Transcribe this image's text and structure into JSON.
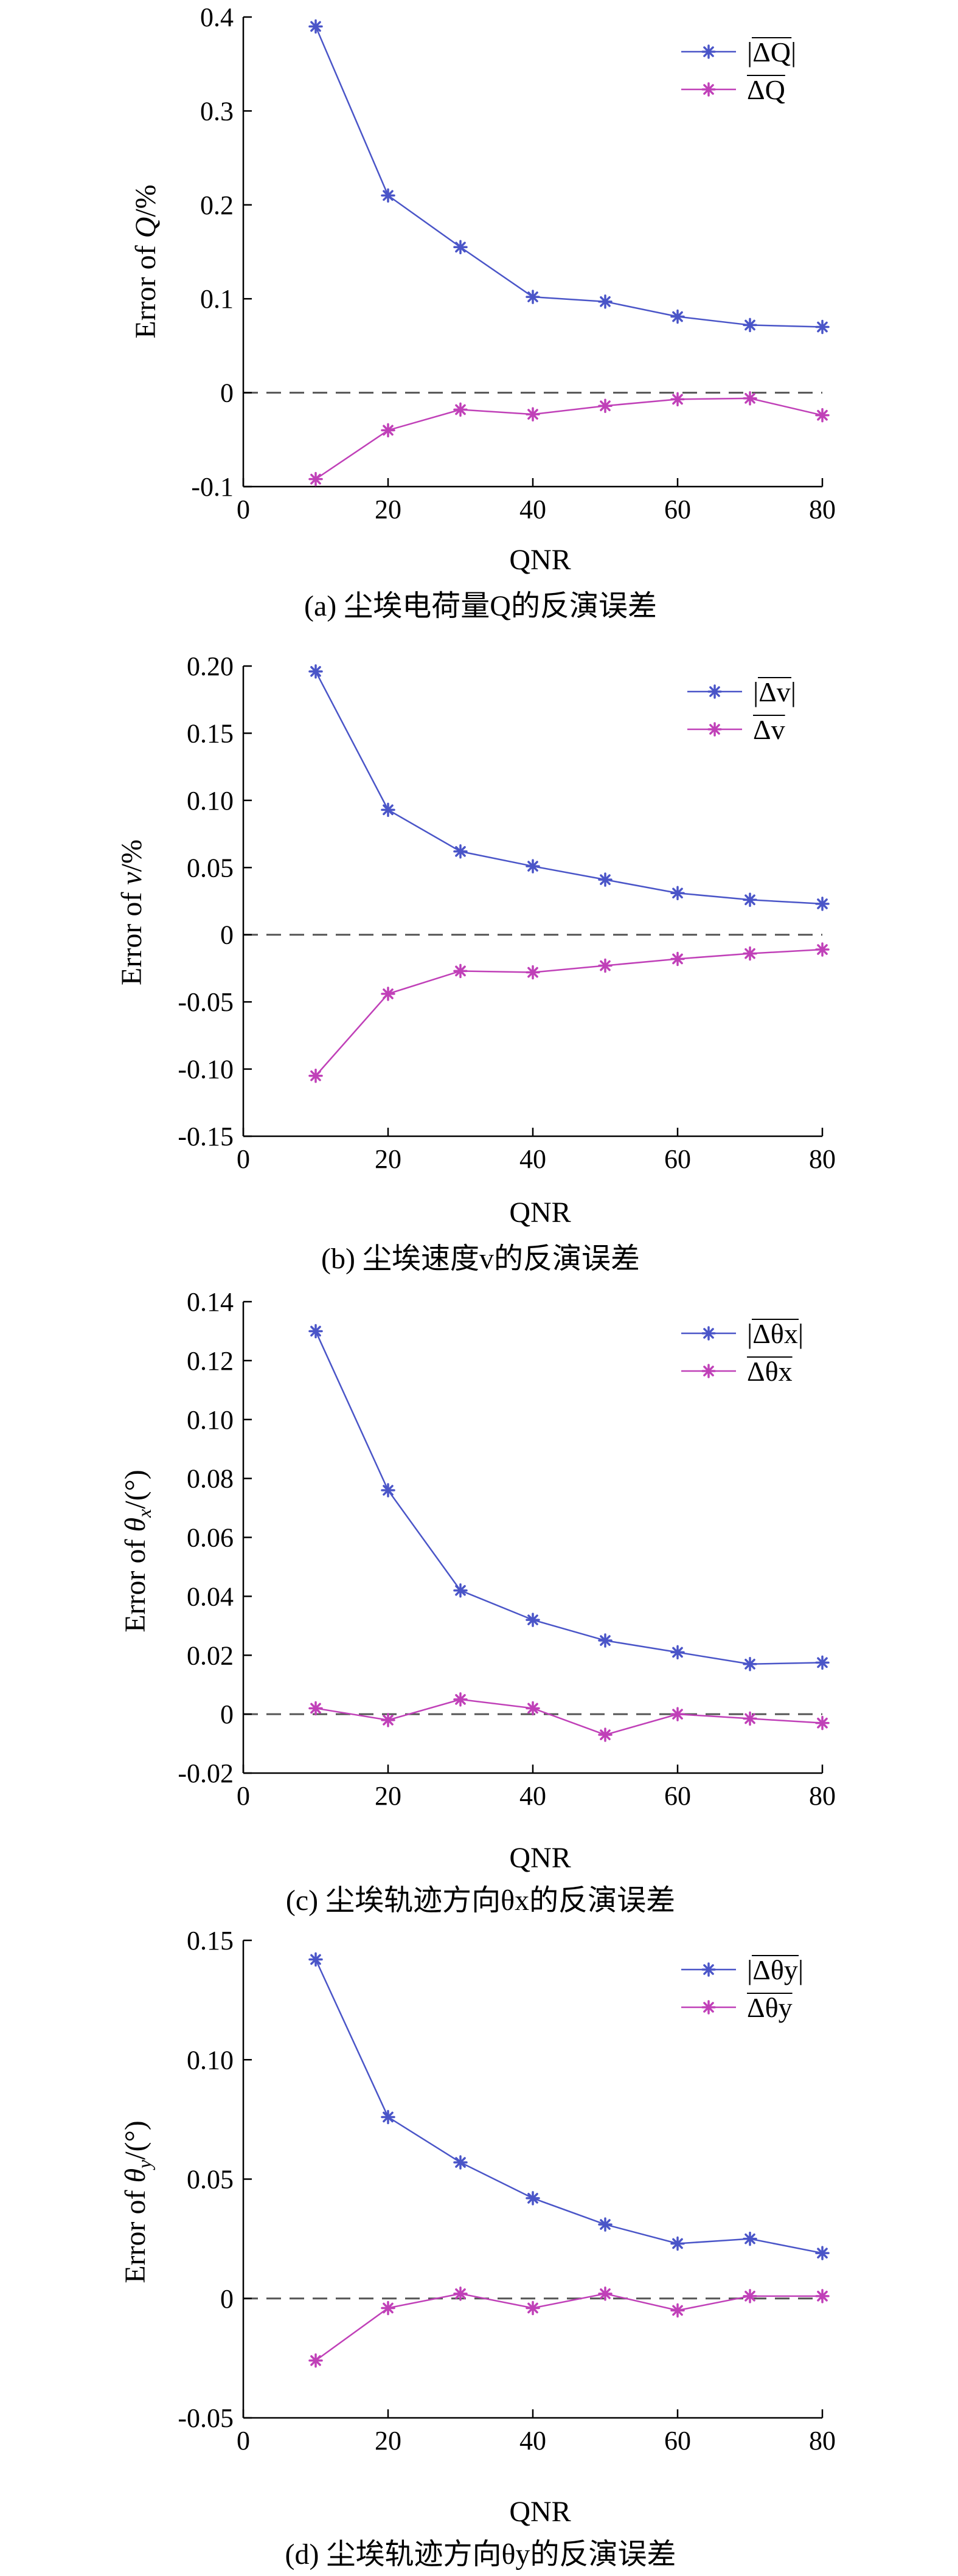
{
  "colors": {
    "abs": "#4a55c8",
    "mean": "#c040b8"
  },
  "chart_data": [
    {
      "type": "line",
      "caption": "(a)  尘埃电荷量Q的反演误差",
      "xlabel": "QNR",
      "ylabel": "Error of Q/%",
      "x": [
        10,
        20,
        30,
        40,
        50,
        60,
        70,
        80
      ],
      "xlim": [
        0,
        80
      ],
      "xticks": [
        0,
        20,
        40,
        60,
        80
      ],
      "ylim": [
        -0.1,
        0.4
      ],
      "yticks": [
        -0.1,
        0,
        0.1,
        0.2,
        0.3,
        0.4
      ],
      "ytick_labels": [
        "-0.1",
        "0",
        "0.1",
        "0.2",
        "0.3",
        "0.4"
      ],
      "reference_line": 0,
      "legend_position": "top-right",
      "series": [
        {
          "name": "|ΔQ|",
          "values": [
            0.39,
            0.21,
            0.155,
            0.102,
            0.097,
            0.081,
            0.072,
            0.07
          ]
        },
        {
          "name": "ΔQ",
          "values": [
            -0.092,
            -0.04,
            -0.018,
            -0.023,
            -0.014,
            -0.007,
            -0.006,
            -0.024
          ]
        }
      ]
    },
    {
      "type": "line",
      "caption": "(b)  尘埃速度v的反演误差",
      "xlabel": "QNR",
      "ylabel": "Error of v/%",
      "x": [
        10,
        20,
        30,
        40,
        50,
        60,
        70,
        80
      ],
      "xlim": [
        0,
        80
      ],
      "xticks": [
        0,
        20,
        40,
        60,
        80
      ],
      "ylim": [
        -0.15,
        0.2
      ],
      "yticks": [
        -0.15,
        -0.1,
        -0.05,
        0,
        0.05,
        0.1,
        0.15,
        0.2
      ],
      "ytick_labels": [
        "-0.15",
        "-0.10",
        "-0.05",
        "0",
        "0.05",
        "0.10",
        "0.15",
        "0.20"
      ],
      "reference_line": 0,
      "legend_position": "top-right",
      "series": [
        {
          "name": "|Δv|",
          "values": [
            0.196,
            0.093,
            0.062,
            0.051,
            0.041,
            0.031,
            0.026,
            0.023
          ]
        },
        {
          "name": "Δv",
          "values": [
            -0.105,
            -0.044,
            -0.027,
            -0.028,
            -0.023,
            -0.018,
            -0.014,
            -0.011
          ]
        }
      ]
    },
    {
      "type": "line",
      "caption": "(c)  尘埃轨迹方向θx的反演误差",
      "xlabel": "QNR",
      "ylabel": "Error of θx/(°)",
      "x": [
        10,
        20,
        30,
        40,
        50,
        60,
        70,
        80
      ],
      "xlim": [
        0,
        80
      ],
      "xticks": [
        0,
        20,
        40,
        60,
        80
      ],
      "ylim": [
        -0.02,
        0.14
      ],
      "yticks": [
        -0.02,
        0,
        0.02,
        0.04,
        0.06,
        0.08,
        0.1,
        0.12,
        0.14
      ],
      "ytick_labels": [
        "-0.02",
        "0",
        "0.02",
        "0.04",
        "0.06",
        "0.08",
        "0.10",
        "0.12",
        "0.14"
      ],
      "reference_line": 0,
      "legend_position": "top-right",
      "series": [
        {
          "name": "|Δθx|",
          "values": [
            0.13,
            0.076,
            0.042,
            0.032,
            0.025,
            0.021,
            0.017,
            0.0175
          ]
        },
        {
          "name": "Δθx",
          "values": [
            0.002,
            -0.002,
            0.005,
            0.002,
            -0.007,
            0.0,
            -0.0015,
            -0.003
          ]
        }
      ]
    },
    {
      "type": "line",
      "caption": "(d)  尘埃轨迹方向θy的反演误差",
      "xlabel": "QNR",
      "ylabel": "Error of θy/(°)",
      "x": [
        10,
        20,
        30,
        40,
        50,
        60,
        70,
        80
      ],
      "xlim": [
        0,
        80
      ],
      "xticks": [
        0,
        20,
        40,
        60,
        80
      ],
      "ylim": [
        -0.05,
        0.15
      ],
      "yticks": [
        -0.05,
        0,
        0.05,
        0.1,
        0.15
      ],
      "ytick_labels": [
        "-0.05",
        "0",
        "0.05",
        "0.10",
        "0.15"
      ],
      "reference_line": 0,
      "legend_position": "top-right",
      "series": [
        {
          "name": "|Δθy|",
          "values": [
            0.142,
            0.076,
            0.057,
            0.042,
            0.031,
            0.023,
            0.025,
            0.019
          ]
        },
        {
          "name": "Δθy",
          "values": [
            -0.026,
            -0.004,
            0.002,
            -0.004,
            0.002,
            -0.005,
            0.001,
            0.001
          ]
        }
      ]
    }
  ]
}
